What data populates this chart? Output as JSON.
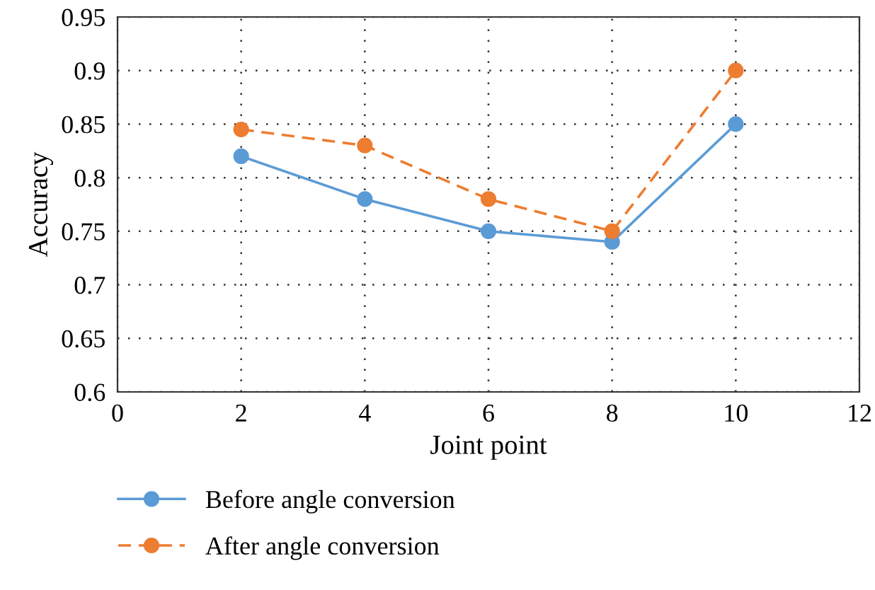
{
  "chart_data": {
    "type": "line",
    "xlabel": "Joint point",
    "ylabel": "Accuracy",
    "x": [
      2,
      4,
      6,
      8,
      10
    ],
    "series": [
      {
        "name": "Before angle conversion",
        "color": "#5b9bd5",
        "line_style": "solid",
        "values": [
          0.82,
          0.78,
          0.75,
          0.74,
          0.85
        ]
      },
      {
        "name": "After angle conversion",
        "color": "#ed7d31",
        "line_style": "dashed",
        "values": [
          0.845,
          0.83,
          0.78,
          0.75,
          0.9
        ]
      }
    ],
    "xlim": [
      0,
      12
    ],
    "xticks": [
      0,
      2,
      4,
      6,
      8,
      10,
      12
    ],
    "ylim": [
      0.6,
      0.95
    ],
    "yticks": [
      {
        "value": 0.6,
        "label": "0.6"
      },
      {
        "value": 0.65,
        "label": "0.65"
      },
      {
        "value": 0.7,
        "label": "0.7"
      },
      {
        "value": 0.75,
        "label": "0.75"
      },
      {
        "value": 0.8,
        "label": "0.8"
      },
      {
        "value": 0.85,
        "label": "0.85"
      },
      {
        "value": 0.9,
        "label": "0.9"
      },
      {
        "value": 0.95,
        "label": "0.95"
      }
    ],
    "grid": true,
    "legend": "bottom left",
    "marker": "circle"
  }
}
